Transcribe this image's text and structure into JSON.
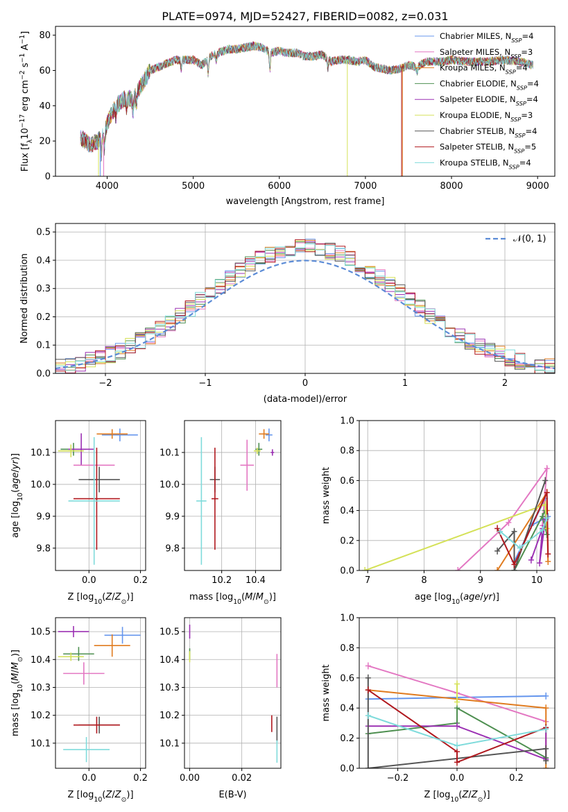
{
  "chart_data": [
    {
      "panel": "spectrum",
      "type": "line",
      "title": "PLATE=0974, MJD=52427, FIBERID=0082, z=0.031",
      "xlabel": "wavelength [Angstrom, rest frame]",
      "ylabel": "Flux [f_λ10^-17 erg cm^-2 s^-1 A^-1]",
      "xlim": [
        3400,
        9200
      ],
      "ylim": [
        0,
        85
      ],
      "xticks": [
        "4000",
        "5000",
        "6000",
        "7000",
        "8000",
        "9000"
      ],
      "yticks": [
        "0",
        "20",
        "40",
        "60",
        "80"
      ],
      "grid": false,
      "legend_position": "top-right",
      "continuum": [
        [
          3690,
          22
        ],
        [
          3800,
          18
        ],
        [
          3900,
          20
        ],
        [
          3960,
          24
        ],
        [
          4000,
          30
        ],
        [
          4100,
          40
        ],
        [
          4200,
          44
        ],
        [
          4300,
          44
        ],
        [
          4400,
          52
        ],
        [
          4500,
          60
        ],
        [
          4600,
          62
        ],
        [
          4700,
          64
        ],
        [
          4800,
          66
        ],
        [
          4900,
          66
        ],
        [
          5000,
          66
        ],
        [
          5100,
          63
        ],
        [
          5200,
          68
        ],
        [
          5300,
          70
        ],
        [
          5400,
          72
        ],
        [
          5500,
          72
        ],
        [
          5600,
          73
        ],
        [
          5700,
          74
        ],
        [
          5800,
          73
        ],
        [
          5900,
          70
        ],
        [
          6000,
          71
        ],
        [
          6100,
          70
        ],
        [
          6200,
          70
        ],
        [
          6300,
          68
        ],
        [
          6400,
          68
        ],
        [
          6500,
          69
        ],
        [
          6600,
          65
        ],
        [
          6700,
          66
        ],
        [
          6800,
          66
        ],
        [
          6900,
          65
        ],
        [
          7000,
          66
        ],
        [
          7100,
          62
        ],
        [
          7200,
          61
        ],
        [
          7300,
          60
        ],
        [
          7400,
          61
        ],
        [
          7500,
          63
        ],
        [
          7600,
          62
        ],
        [
          7700,
          65
        ],
        [
          7800,
          65
        ],
        [
          7900,
          65
        ],
        [
          8000,
          66
        ],
        [
          8200,
          65
        ],
        [
          8400,
          65
        ],
        [
          8600,
          66
        ],
        [
          8800,
          65
        ],
        [
          8950,
          63
        ]
      ],
      "series": [
        {
          "name": "Chabrier MILES, N_SSP=4",
          "color": "#6495ed"
        },
        {
          "name": "Salpeter MILES, N_SSP=3",
          "color": "#e377c2"
        },
        {
          "name": "Kroupa MILES, N_SSP=4",
          "color": "#e07b1f"
        },
        {
          "name": "Chabrier ELODIE, N_SSP=4",
          "color": "#4e8f50"
        },
        {
          "name": "Salpeter ELODIE, N_SSP=4",
          "color": "#9b30b3"
        },
        {
          "name": "Kroupa ELODIE, N_SSP=3",
          "color": "#d4e157"
        },
        {
          "name": "Chabrier STELIB, N_SSP=4",
          "color": "#555555"
        },
        {
          "name": "Salpeter STELIB, N_SSP=5",
          "color": "#b0181e"
        },
        {
          "name": "Kroupa STELIB, N_SSP=4",
          "color": "#7fdbdb"
        }
      ]
    },
    {
      "panel": "residual-histogram",
      "type": "line",
      "xlabel": "(data-model)/error",
      "ylabel": "Normed distribution",
      "xlim": [
        -2.5,
        2.5
      ],
      "ylim": [
        0,
        0.53
      ],
      "xticks": [
        "−2",
        "−1",
        "0",
        "1",
        "2"
      ],
      "yticks": [
        "0.0",
        "0.1",
        "0.2",
        "0.3",
        "0.4",
        "0.5"
      ],
      "grid": true,
      "legend": "𝒩(0, 1)",
      "legend_position": "top-right",
      "reference_curve": "normal(0,1)",
      "hist_bin_width": 0.1
    },
    {
      "panel": "age-vs-Z",
      "type": "scatter",
      "xlabel": "Z [log10(Z/Z⊙)]",
      "ylabel": "age [log10(age/yr)]",
      "xlim": [
        -0.13,
        0.22
      ],
      "ylim": [
        9.73,
        10.2
      ],
      "xticks": [
        "0.0",
        "0.2"
      ],
      "yticks": [
        "9.8",
        "9.9",
        "10.0",
        "10.1"
      ],
      "grid": true,
      "points": [
        {
          "color": "#6495ed",
          "x": 0.12,
          "xerr": 0.07,
          "y": 10.155,
          "yerr": 0.02
        },
        {
          "color": "#e07b1f",
          "x": 0.09,
          "xerr": 0.06,
          "y": 10.158,
          "yerr": 0.015
        },
        {
          "color": "#4e8f50",
          "x": -0.06,
          "xerr": 0.05,
          "y": 10.11,
          "yerr": 0.02
        },
        {
          "color": "#9b30b3",
          "x": -0.03,
          "xerr": 0.05,
          "y": 10.11,
          "yerr": 0.05
        },
        {
          "color": "#d4e157",
          "x": -0.07,
          "xerr": 0.05,
          "y": 10.105,
          "yerr": 0.02
        },
        {
          "color": "#e377c2",
          "x": 0.02,
          "xerr": 0.08,
          "y": 10.06,
          "yerr": 0.06
        },
        {
          "color": "#555555",
          "x": 0.04,
          "xerr": 0.08,
          "y": 10.015,
          "yerr": 0.04
        },
        {
          "color": "#b0181e",
          "x": 0.03,
          "xerr": 0.09,
          "y": 9.955,
          "yerr": 0.16
        },
        {
          "color": "#7fdbdb",
          "x": 0.02,
          "xerr": 0.1,
          "y": 9.948,
          "yerr": 0.2
        }
      ]
    },
    {
      "panel": "age-vs-mass",
      "type": "scatter",
      "xlabel": "mass [log10(M/M⊙)]",
      "ylabel": "",
      "xlim": [
        9.98,
        10.55
      ],
      "ylim": [
        9.73,
        10.2
      ],
      "xticks": [
        "10.2",
        "10.4"
      ],
      "yticks": [
        "9.8",
        "9.9",
        "10.0",
        "10.1"
      ],
      "grid": true,
      "points": [
        {
          "color": "#6495ed",
          "x": 10.48,
          "xerr": 0.02,
          "y": 10.155,
          "yerr": 0.02
        },
        {
          "color": "#e07b1f",
          "x": 10.45,
          "xerr": 0.03,
          "y": 10.158,
          "yerr": 0.015
        },
        {
          "color": "#4e8f50",
          "x": 10.42,
          "xerr": 0.02,
          "y": 10.11,
          "yerr": 0.02
        },
        {
          "color": "#9b30b3",
          "x": 10.5,
          "xerr": 0.01,
          "y": 10.1,
          "yerr": 0.01
        },
        {
          "color": "#d4e157",
          "x": 10.41,
          "xerr": 0.02,
          "y": 10.105,
          "yerr": 0.01
        },
        {
          "color": "#e377c2",
          "x": 10.35,
          "xerr": 0.04,
          "y": 10.06,
          "yerr": 0.08
        },
        {
          "color": "#555555",
          "x": 10.16,
          "xerr": 0.03,
          "y": 10.015,
          "yerr": 0.04
        },
        {
          "color": "#b0181e",
          "x": 10.16,
          "xerr": 0.02,
          "y": 9.955,
          "yerr": 0.16
        },
        {
          "color": "#7fdbdb",
          "x": 10.08,
          "xerr": 0.03,
          "y": 9.948,
          "yerr": 0.2
        }
      ]
    },
    {
      "panel": "massweight-vs-age",
      "type": "line",
      "xlabel": "age [log10(age/yr)]",
      "ylabel": "mass weight",
      "xlim": [
        6.85,
        10.32
      ],
      "ylim": [
        0,
        1.0
      ],
      "xticks": [
        "7",
        "8",
        "9",
        "10"
      ],
      "yticks": [
        "0.0",
        "0.2",
        "0.4",
        "0.6",
        "0.8",
        "1.0"
      ],
      "grid": true,
      "series": [
        {
          "color": "#6495ed",
          "points": [
            [
              9.6,
              0.06
            ],
            [
              10.15,
              0.48
            ],
            [
              9.9,
              0.3
            ],
            [
              10.2,
              0.36
            ]
          ]
        },
        {
          "color": "#e377c2",
          "points": [
            [
              8.6,
              0.0
            ],
            [
              9.5,
              0.32
            ],
            [
              10.18,
              0.68
            ],
            [
              10.1,
              0.3
            ]
          ]
        },
        {
          "color": "#e07b1f",
          "points": [
            [
              9.3,
              0.0
            ],
            [
              10.18,
              0.52
            ],
            [
              10.18,
              0.4
            ],
            [
              10.2,
              0.06
            ]
          ]
        },
        {
          "color": "#4e8f50",
          "points": [
            [
              9.6,
              0.0
            ],
            [
              10.15,
              0.4
            ],
            [
              10.18,
              0.24
            ],
            [
              10.1,
              0.36
            ]
          ]
        },
        {
          "color": "#9b30b3",
          "points": [
            [
              9.9,
              0.07
            ],
            [
              10.1,
              0.28
            ],
            [
              10.05,
              0.05
            ],
            [
              10.15,
              0.34
            ]
          ]
        },
        {
          "color": "#d4e157",
          "points": [
            [
              6.95,
              0.0
            ],
            [
              10.15,
              0.44
            ],
            [
              10.18,
              0.28
            ]
          ]
        },
        {
          "color": "#555555",
          "points": [
            [
              9.3,
              0.13
            ],
            [
              9.6,
              0.26
            ],
            [
              9.6,
              0.0
            ],
            [
              10.15,
              0.6
            ]
          ]
        },
        {
          "color": "#b0181e",
          "points": [
            [
              9.3,
              0.28
            ],
            [
              9.6,
              0.04
            ],
            [
              10.18,
              0.52
            ],
            [
              10.2,
              0.11
            ]
          ]
        },
        {
          "color": "#7fdbdb",
          "points": [
            [
              9.35,
              0.26
            ],
            [
              9.7,
              0.15
            ],
            [
              10.1,
              0.27
            ],
            [
              10.18,
              0.35
            ]
          ]
        }
      ]
    },
    {
      "panel": "mass-vs-Z",
      "type": "scatter",
      "xlabel": "Z [log10(Z/Z⊙)]",
      "ylabel": "mass [log10(M/M⊙)]",
      "xlim": [
        -0.13,
        0.22
      ],
      "ylim": [
        10.01,
        10.55
      ],
      "xticks": [
        "0.0",
        "0.2"
      ],
      "yticks": [
        "10.1",
        "10.2",
        "10.3",
        "10.4",
        "10.5"
      ],
      "grid": true,
      "points": [
        {
          "color": "#6495ed",
          "x": 0.13,
          "xerr": 0.07,
          "y": 10.487,
          "yerr": 0.03
        },
        {
          "color": "#e07b1f",
          "x": 0.09,
          "xerr": 0.07,
          "y": 10.45,
          "yerr": 0.04
        },
        {
          "color": "#4e8f50",
          "x": -0.04,
          "xerr": 0.06,
          "y": 10.42,
          "yerr": 0.025
        },
        {
          "color": "#9b30b3",
          "x": -0.06,
          "xerr": 0.06,
          "y": 10.5,
          "yerr": 0.02
        },
        {
          "color": "#d4e157",
          "x": -0.07,
          "xerr": 0.05,
          "y": 10.41,
          "yerr": 0.015
        },
        {
          "color": "#e377c2",
          "x": -0.02,
          "xerr": 0.08,
          "y": 10.35,
          "yerr": 0.04
        },
        {
          "color": "#555555",
          "x": 0.04,
          "xerr": 0.08,
          "y": 10.165,
          "yerr": 0.03
        },
        {
          "color": "#b0181e",
          "x": 0.03,
          "xerr": 0.09,
          "y": 10.165,
          "yerr": 0.03
        },
        {
          "color": "#7fdbdb",
          "x": -0.01,
          "xerr": 0.09,
          "y": 10.077,
          "yerr": 0.045
        }
      ]
    },
    {
      "panel": "mass-vs-EBV",
      "type": "scatter",
      "xlabel": "E(B-V)",
      "ylabel": "",
      "xlim": [
        -0.002,
        0.035
      ],
      "ylim": [
        10.01,
        10.55
      ],
      "xticks": [
        "0.00",
        "0.02"
      ],
      "yticks": [
        "10.1",
        "10.2",
        "10.3",
        "10.4",
        "10.5"
      ],
      "grid": true,
      "points": [
        {
          "color": "#9b30b3",
          "x": 0.0,
          "xerr": 0.0,
          "y": 10.5,
          "yerr": 0.025
        },
        {
          "color": "#4e8f50",
          "x": 0.0,
          "xerr": 0.0,
          "y": 10.42,
          "yerr": 0.02
        },
        {
          "color": "#d4e157",
          "x": 0.0,
          "xerr": 0.0,
          "y": 10.41,
          "yerr": 0.02
        },
        {
          "color": "#e377c2",
          "x": 0.0335,
          "xerr": 0.0,
          "y": 10.36,
          "yerr": 0.06
        },
        {
          "color": "#b0181e",
          "x": 0.0315,
          "xerr": 0.0,
          "y": 10.17,
          "yerr": 0.03
        },
        {
          "color": "#555555",
          "x": 0.0335,
          "xerr": 0.0,
          "y": 10.15,
          "yerr": 0.045
        },
        {
          "color": "#7fdbdb",
          "x": 0.0335,
          "xerr": 0.0,
          "y": 10.07,
          "yerr": 0.04
        }
      ]
    },
    {
      "panel": "massweight-vs-Z",
      "type": "line",
      "xlabel": "Z [log10(Z/Z⊙)]",
      "ylabel": "mass weight",
      "xlim": [
        -0.33,
        0.33
      ],
      "ylim": [
        0,
        1.0
      ],
      "xticks": [
        "−0.2",
        "0.0",
        "0.2"
      ],
      "yticks": [
        "0.0",
        "0.2",
        "0.4",
        "0.6",
        "0.8",
        "1.0"
      ],
      "grid": true,
      "series": [
        {
          "color": "#6495ed",
          "points": [
            [
              -0.3,
              0.46
            ],
            [
              0.3,
              0.48
            ]
          ]
        },
        {
          "color": "#e377c2",
          "points": [
            [
              -0.3,
              0.68
            ],
            [
              0.0,
              0.5
            ],
            [
              0.3,
              0.31
            ]
          ]
        },
        {
          "color": "#e07b1f",
          "points": [
            [
              -0.3,
              0.52
            ],
            [
              0.3,
              0.4
            ],
            [
              0.3,
              0.0
            ]
          ]
        },
        {
          "color": "#4e8f50",
          "points": [
            [
              -0.3,
              0.23
            ],
            [
              0.0,
              0.3
            ],
            [
              0.0,
              0.4
            ],
            [
              0.3,
              0.07
            ]
          ]
        },
        {
          "color": "#9b30b3",
          "points": [
            [
              -0.3,
              0.28
            ],
            [
              0.0,
              0.28
            ],
            [
              0.3,
              0.06
            ],
            [
              0.3,
              0.27
            ]
          ]
        },
        {
          "color": "#d4e157",
          "points": [
            [
              0.0,
              0.56
            ],
            [
              0.0,
              0.44
            ]
          ]
        },
        {
          "color": "#555555",
          "points": [
            [
              -0.3,
              0.6
            ],
            [
              -0.3,
              0.0
            ],
            [
              0.3,
              0.13
            ],
            [
              0.3,
              0.05
            ]
          ]
        },
        {
          "color": "#b0181e",
          "points": [
            [
              -0.3,
              0.52
            ],
            [
              0.0,
              0.11
            ],
            [
              0.0,
              0.04
            ],
            [
              0.3,
              0.27
            ]
          ]
        },
        {
          "color": "#7fdbdb",
          "points": [
            [
              -0.3,
              0.35
            ],
            [
              0.0,
              0.15
            ],
            [
              0.3,
              0.26
            ]
          ]
        }
      ]
    }
  ]
}
